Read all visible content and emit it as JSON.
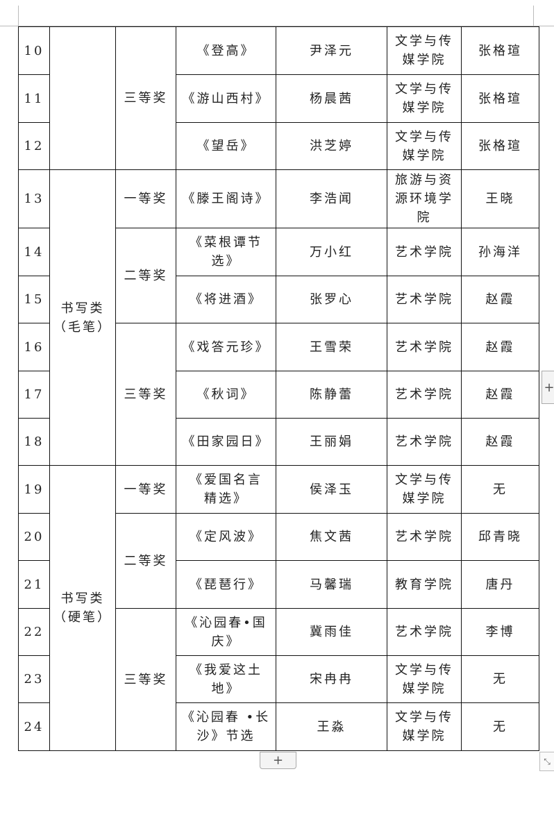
{
  "controls": {
    "add_column": "+",
    "add_row": "+",
    "resize_icon": "resize-icon"
  },
  "groups": [
    {
      "category": "",
      "awards": [
        {
          "award": "三等奖",
          "rows": [
            {
              "no": "10",
              "work": "《登高》",
              "author": "尹泽元",
              "college": "文学与传\n媒学院",
              "teacher": "张格瑄"
            },
            {
              "no": "11",
              "work": "《游山西村》",
              "author": "杨晨茜",
              "college": "文学与传\n媒学院",
              "teacher": "张格瑄"
            },
            {
              "no": "12",
              "work": "《望岳》",
              "author": "洪芝婷",
              "college": "文学与传\n媒学院",
              "teacher": "张格瑄"
            }
          ]
        }
      ]
    },
    {
      "category": "书写类\n（毛笔）",
      "awards": [
        {
          "award": "一等奖",
          "rows": [
            {
              "no": "13",
              "work": "《滕王阁诗》",
              "author": "李浩闻",
              "college": "旅游与资\n源环境学\n院",
              "teacher": "王晓"
            }
          ]
        },
        {
          "award": "二等奖",
          "rows": [
            {
              "no": "14",
              "work": "《菜根谭节\n选》",
              "author": "万小红",
              "college": "艺术学院",
              "teacher": "孙海洋"
            },
            {
              "no": "15",
              "work": "《将进酒》",
              "author": "张罗心",
              "college": "艺术学院",
              "teacher": "赵霞"
            }
          ]
        },
        {
          "award": "三等奖",
          "rows": [
            {
              "no": "16",
              "work": "《戏答元珍》",
              "author": "王雪荣",
              "college": "艺术学院",
              "teacher": "赵霞"
            },
            {
              "no": "17",
              "work": "《秋词》",
              "author": "陈静蕾",
              "college": "艺术学院",
              "teacher": "赵霞"
            },
            {
              "no": "18",
              "work": "《田家园日》",
              "author": "王丽娟",
              "college": "艺术学院",
              "teacher": "赵霞"
            }
          ]
        }
      ]
    },
    {
      "category": "书写类\n（硬笔）",
      "awards": [
        {
          "award": "一等奖",
          "rows": [
            {
              "no": "19",
              "work": "《爱国名言\n精选》",
              "author": "侯泽玉",
              "college": "文学与传\n媒学院",
              "teacher": "无"
            }
          ]
        },
        {
          "award": "二等奖",
          "rows": [
            {
              "no": "20",
              "work": "《定风波》",
              "author": "焦文茜",
              "college": "艺术学院",
              "teacher": "邱青晓"
            },
            {
              "no": "21",
              "work": "《琵琶行》",
              "author": "马馨瑞",
              "college": "教育学院",
              "teacher": "唐丹"
            }
          ]
        },
        {
          "award": "三等奖",
          "rows": [
            {
              "no": "22",
              "work": "《沁园春•国\n庆》",
              "author": "冀雨佳",
              "college": "艺术学院",
              "teacher": "李博"
            },
            {
              "no": "23",
              "work": "《我爱这土\n地》",
              "author": "宋冉冉",
              "college": "文学与传\n媒学院",
              "teacher": "无"
            },
            {
              "no": "24",
              "work": "《沁园春 •长\n沙》节选",
              "author": "王淼",
              "college": "文学与传\n媒学院",
              "teacher": "无"
            }
          ]
        }
      ]
    }
  ]
}
